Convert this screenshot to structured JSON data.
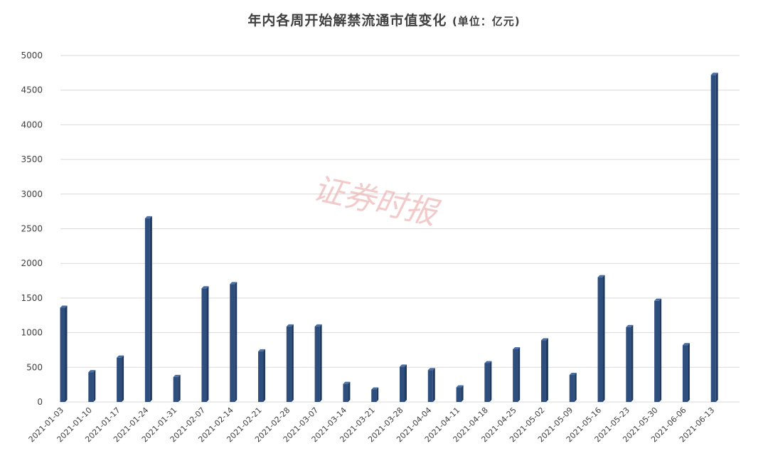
{
  "chart_data": {
    "type": "bar",
    "title": "年内各周开始解禁流通市值变化",
    "title_unit": "(单位：亿元)",
    "watermark": "证券时报",
    "xlabel": "",
    "ylabel": "",
    "ylim": [
      0,
      5000
    ],
    "yticks": [
      0,
      500,
      1000,
      1500,
      2000,
      2500,
      3000,
      3500,
      4000,
      4500,
      5000
    ],
    "grid": true,
    "legend": "none",
    "bar_color": "#2e4e7e",
    "categories": [
      "2021-01-03",
      "2021-01-10",
      "2021-01-17",
      "2021-01-24",
      "2021-01-31",
      "2021-02-07",
      "2021-02-14",
      "2021-02-21",
      "2021-02-28",
      "2021-03-07",
      "2021-03-14",
      "2021-03-21",
      "2021-03-28",
      "2021-04-04",
      "2021-04-11",
      "2021-04-18",
      "2021-04-25",
      "2021-05-02",
      "2021-05-09",
      "2021-05-16",
      "2021-05-23",
      "2021-05-30",
      "2021-06-06",
      "2021-06-13"
    ],
    "values": [
      1360,
      430,
      640,
      2650,
      360,
      1640,
      1700,
      730,
      1090,
      1090,
      260,
      180,
      510,
      460,
      210,
      560,
      760,
      890,
      390,
      1800,
      1080,
      1460,
      820,
      4720
    ]
  }
}
